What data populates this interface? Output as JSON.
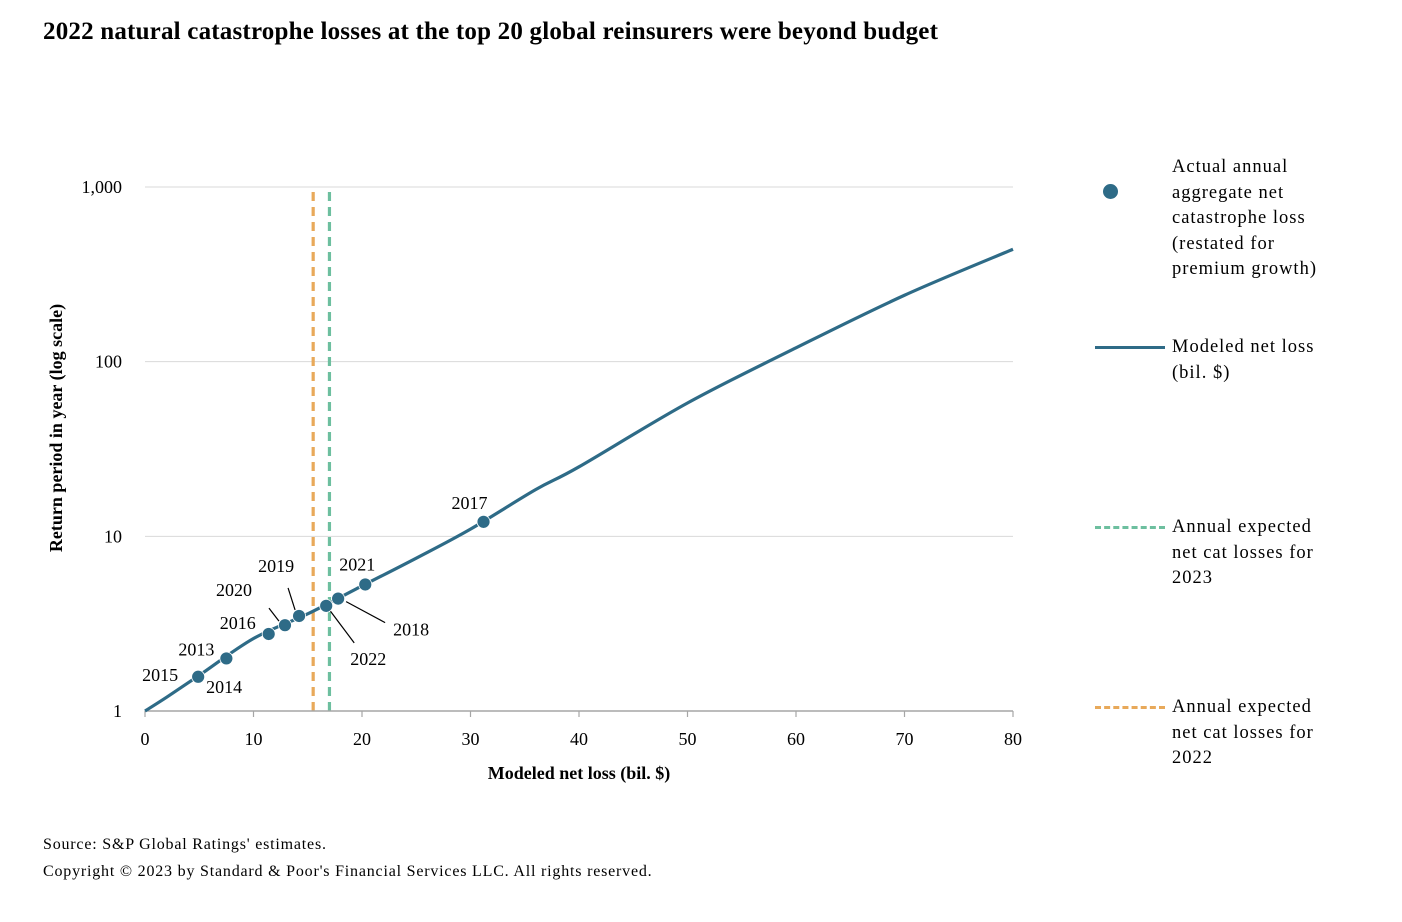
{
  "title": "2022 natural catastrophe losses at the top 20 global reinsurers were beyond budget",
  "colors": {
    "modeled": "#2e6b87",
    "points": "#2e6b87",
    "expected_2023": "#6dbf9f",
    "expected_2022": "#e8a95a",
    "grid": "#d9d9d9",
    "axis": "#a6a6a6"
  },
  "legend": {
    "items": [
      {
        "key": "points",
        "label": "Actual annual aggregate net catastrophe loss (restated for premium growth)",
        "lines": [
          "Actual annual",
          "aggregate net",
          "catastrophe loss",
          "(restated for",
          "premium growth)"
        ]
      },
      {
        "key": "modeled",
        "label": "Modeled net loss (bil. $)",
        "lines": [
          "Modeled net loss",
          "(bil. $)"
        ]
      },
      {
        "key": "expected_2023",
        "label": "Annual expected net cat losses for 2023",
        "lines": [
          "Annual expected",
          "net cat losses for",
          "2023"
        ]
      },
      {
        "key": "expected_2022",
        "label": "Annual expected net cat losses for 2022",
        "lines": [
          "Annual expected",
          "net cat losses for",
          "2022"
        ]
      }
    ]
  },
  "footer": {
    "source": "Source: S&P Global Ratings' estimates.",
    "copyright": "Copyright © 2023 by Standard & Poor's Financial Services LLC. All rights reserved."
  },
  "chart_data": {
    "type": "line",
    "title": "2022 natural catastrophe losses at the top 20 global reinsurers were beyond budget",
    "xlabel": "Modeled net loss (bil. $)",
    "ylabel": "Return period in year (log scale)",
    "xlim": [
      0,
      80
    ],
    "ylim": [
      1,
      1000
    ],
    "yscale": "log",
    "x_ticks": [
      0,
      10,
      20,
      30,
      40,
      50,
      60,
      70,
      80
    ],
    "x_tick_labels": [
      "0",
      "10",
      "20",
      "30",
      "40",
      "50",
      "60",
      "70",
      "80"
    ],
    "y_ticks": [
      1,
      10,
      100,
      1000
    ],
    "y_tick_labels": [
      "1",
      "10",
      "100",
      "1,000"
    ],
    "grid": "horizontal",
    "legend_position": "right",
    "series": [
      {
        "name": "Modeled net loss (bil. $)",
        "kind": "line",
        "x": [
          0,
          2,
          5,
          10,
          15,
          20,
          25,
          30,
          36,
          40,
          50,
          60,
          70,
          80
        ],
        "y": [
          1,
          1.2,
          1.6,
          2.6,
          3.6,
          5.2,
          7.5,
          11,
          18.5,
          25,
          58,
          120,
          240,
          440
        ]
      },
      {
        "name": "Actual annual aggregate net catastrophe loss (restated for premium growth)",
        "kind": "scatter",
        "points": [
          {
            "label": "2015",
            "x": 4.9,
            "y": 1.57
          },
          {
            "label": "2014",
            "x": 4.9,
            "y": 1.57
          },
          {
            "label": "2013",
            "x": 7.5,
            "y": 2.0
          },
          {
            "label": "2016",
            "x": 11.4,
            "y": 2.76
          },
          {
            "label": "2020",
            "x": 12.9,
            "y": 3.1
          },
          {
            "label": "2019",
            "x": 14.2,
            "y": 3.5
          },
          {
            "label": "2022",
            "x": 16.7,
            "y": 4.0
          },
          {
            "label": "2018",
            "x": 17.8,
            "y": 4.4
          },
          {
            "label": "2021",
            "x": 20.3,
            "y": 5.3
          },
          {
            "label": "2017",
            "x": 31.2,
            "y": 12.1
          }
        ]
      },
      {
        "name": "Annual expected net cat losses for 2023",
        "kind": "vline",
        "x": 17.0
      },
      {
        "name": "Annual expected net cat losses for 2022",
        "kind": "vline",
        "x": 15.5
      }
    ]
  }
}
